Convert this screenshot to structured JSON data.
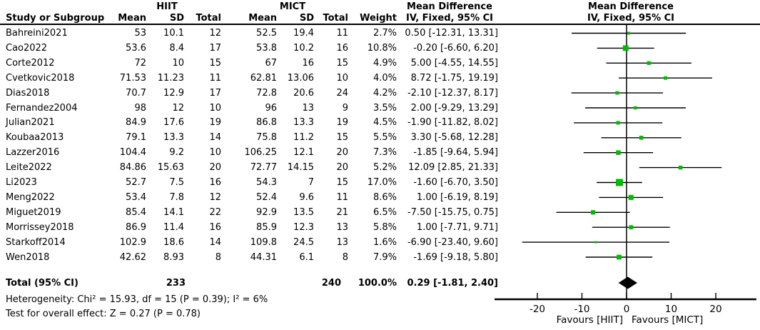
{
  "colors": {
    "marker_green": "#00BB00",
    "line_black": "#000000",
    "background": "#ffffff"
  },
  "table": {
    "headers": {
      "group1": "HIIT",
      "group2": "MICT",
      "study": "Study or Subgroup",
      "mean": "Mean",
      "sd": "SD",
      "total": "Total",
      "weight": "Weight",
      "md_line1": "Mean Difference",
      "md_line2": "IV, Fixed, 95% CI"
    },
    "rows": [
      {
        "study": "Bahreini2021",
        "mean1": "53",
        "sd1": "10.1",
        "n1": "12",
        "mean2": "52.5",
        "sd2": "19.4",
        "n2": "11",
        "weight": "2.7%",
        "ci": "0.50 [-12.31, 13.31]"
      },
      {
        "study": "Cao2022",
        "mean1": "53.6",
        "sd1": "8.4",
        "n1": "17",
        "mean2": "53.8",
        "sd2": "10.2",
        "n2": "16",
        "weight": "10.8%",
        "ci": "-0.20 [-6.60, 6.20]"
      },
      {
        "study": "Corte2012",
        "mean1": "72",
        "sd1": "10",
        "n1": "15",
        "mean2": "67",
        "sd2": "16",
        "n2": "15",
        "weight": "4.9%",
        "ci": "5.00 [-4.55, 14.55]"
      },
      {
        "study": "Cvetkovic2018",
        "mean1": "71.53",
        "sd1": "11.23",
        "n1": "11",
        "mean2": "62.81",
        "sd2": "13.06",
        "n2": "10",
        "weight": "4.0%",
        "ci": "8.72 [-1.75, 19.19]"
      },
      {
        "study": "Dias2018",
        "mean1": "70.7",
        "sd1": "12.9",
        "n1": "17",
        "mean2": "72.8",
        "sd2": "20.6",
        "n2": "24",
        "weight": "4.2%",
        "ci": "-2.10 [-12.37, 8.17]"
      },
      {
        "study": "Fernandez2004",
        "mean1": "98",
        "sd1": "12",
        "n1": "10",
        "mean2": "96",
        "sd2": "13",
        "n2": "9",
        "weight": "3.5%",
        "ci": "2.00 [-9.29, 13.29]"
      },
      {
        "study": "Julian2021",
        "mean1": "84.9",
        "sd1": "17.6",
        "n1": "19",
        "mean2": "86.8",
        "sd2": "13.3",
        "n2": "19",
        "weight": "4.5%",
        "ci": "-1.90 [-11.82, 8.02]"
      },
      {
        "study": "Koubaa2013",
        "mean1": "79.1",
        "sd1": "13.3",
        "n1": "14",
        "mean2": "75.8",
        "sd2": "11.2",
        "n2": "15",
        "weight": "5.5%",
        "ci": "3.30 [-5.68, 12.28]"
      },
      {
        "study": "Lazzer2016",
        "mean1": "104.4",
        "sd1": "9.2",
        "n1": "10",
        "mean2": "106.25",
        "sd2": "12.1",
        "n2": "20",
        "weight": "7.3%",
        "ci": "-1.85 [-9.64, 5.94]"
      },
      {
        "study": "Leite2022",
        "mean1": "84.86",
        "sd1": "15.63",
        "n1": "20",
        "mean2": "72.77",
        "sd2": "14.15",
        "n2": "20",
        "weight": "5.2%",
        "ci": "12.09 [2.85, 21.33]"
      },
      {
        "study": "Li2023",
        "mean1": "52.7",
        "sd1": "7.5",
        "n1": "16",
        "mean2": "54.3",
        "sd2": "7",
        "n2": "15",
        "weight": "17.0%",
        "ci": "-1.60 [-6.70, 3.50]"
      },
      {
        "study": "Meng2022",
        "mean1": "53.4",
        "sd1": "7.8",
        "n1": "12",
        "mean2": "52.4",
        "sd2": "9.6",
        "n2": "11",
        "weight": "8.6%",
        "ci": "1.00 [-6.19, 8.19]"
      },
      {
        "study": "Miguet2019",
        "mean1": "85.4",
        "sd1": "14.1",
        "n1": "22",
        "mean2": "92.9",
        "sd2": "13.5",
        "n2": "21",
        "weight": "6.5%",
        "ci": "-7.50 [-15.75, 0.75]"
      },
      {
        "study": "Morrissey2018",
        "mean1": "86.9",
        "sd1": "11.4",
        "n1": "16",
        "mean2": "85.9",
        "sd2": "12.3",
        "n2": "13",
        "weight": "5.8%",
        "ci": "1.00 [-7.71, 9.71]"
      },
      {
        "study": "Starkoff2014",
        "mean1": "102.9",
        "sd1": "18.6",
        "n1": "14",
        "mean2": "109.8",
        "sd2": "24.5",
        "n2": "13",
        "weight": "1.6%",
        "ci": "-6.90 [-23.40, 9.60]"
      },
      {
        "study": "Wen2018",
        "mean1": "42.62",
        "sd1": "8.93",
        "n1": "8",
        "mean2": "44.31",
        "sd2": "6.1",
        "n2": "8",
        "weight": "7.9%",
        "ci": "-1.69 [-9.18, 5.80]"
      }
    ],
    "total_row": {
      "label": "Total (95% CI)",
      "total1": "233",
      "total2": "240",
      "weight": "100.0%",
      "ci": "0.29 [-1.81, 2.40]"
    },
    "heterogeneity": "Heterogeneity: Chi² = 15.93, df = 15 (P = 0.39); I² = 6%",
    "overall_effect": "Test for overall effect: Z = 0.27 (P = 0.78)"
  },
  "chart_data": {
    "type": "scatter",
    "subtype": "forest-plot",
    "title": "Mean Difference",
    "subtitle": "IV, Fixed, 95% CI",
    "x_ticks": [
      -20,
      -10,
      0,
      10,
      20
    ],
    "xlim": [
      -29.6,
      29.1
    ],
    "zero_line": 0,
    "favours_left": "Favours [HIIT]",
    "favours_right": "Favours [MICT]",
    "studies": [
      {
        "name": "Bahreini2021",
        "md": 0.5,
        "ci_low": -12.31,
        "ci_high": 13.31,
        "weight_pct": 2.7
      },
      {
        "name": "Cao2022",
        "md": -0.2,
        "ci_low": -6.6,
        "ci_high": 6.2,
        "weight_pct": 10.8
      },
      {
        "name": "Corte2012",
        "md": 5.0,
        "ci_low": -4.55,
        "ci_high": 14.55,
        "weight_pct": 4.9
      },
      {
        "name": "Cvetkovic2018",
        "md": 8.72,
        "ci_low": -1.75,
        "ci_high": 19.19,
        "weight_pct": 4.0
      },
      {
        "name": "Dias2018",
        "md": -2.1,
        "ci_low": -12.37,
        "ci_high": 8.17,
        "weight_pct": 4.2
      },
      {
        "name": "Fernandez2004",
        "md": 2.0,
        "ci_low": -9.29,
        "ci_high": 13.29,
        "weight_pct": 3.5
      },
      {
        "name": "Julian2021",
        "md": -1.9,
        "ci_low": -11.82,
        "ci_high": 8.02,
        "weight_pct": 4.5
      },
      {
        "name": "Koubaa2013",
        "md": 3.3,
        "ci_low": -5.68,
        "ci_high": 12.28,
        "weight_pct": 5.5
      },
      {
        "name": "Lazzer2016",
        "md": -1.85,
        "ci_low": -9.64,
        "ci_high": 5.94,
        "weight_pct": 7.3
      },
      {
        "name": "Leite2022",
        "md": 12.09,
        "ci_low": 2.85,
        "ci_high": 21.33,
        "weight_pct": 5.2
      },
      {
        "name": "Li2023",
        "md": -1.6,
        "ci_low": -6.7,
        "ci_high": 3.5,
        "weight_pct": 17.0
      },
      {
        "name": "Meng2022",
        "md": 1.0,
        "ci_low": -6.19,
        "ci_high": 8.19,
        "weight_pct": 8.6
      },
      {
        "name": "Miguet2019",
        "md": -7.5,
        "ci_low": -15.75,
        "ci_high": 0.75,
        "weight_pct": 6.5
      },
      {
        "name": "Morrissey2018",
        "md": 1.0,
        "ci_low": -7.71,
        "ci_high": 9.71,
        "weight_pct": 5.8
      },
      {
        "name": "Starkoff2014",
        "md": -6.9,
        "ci_low": -23.4,
        "ci_high": 9.6,
        "weight_pct": 1.6
      },
      {
        "name": "Wen2018",
        "md": -1.69,
        "ci_low": -9.18,
        "ci_high": 5.8,
        "weight_pct": 7.9
      }
    ],
    "total": {
      "label": "Total (95% CI)",
      "md": 0.29,
      "ci_low": -1.81,
      "ci_high": 2.4,
      "weight_pct": 100.0
    }
  }
}
